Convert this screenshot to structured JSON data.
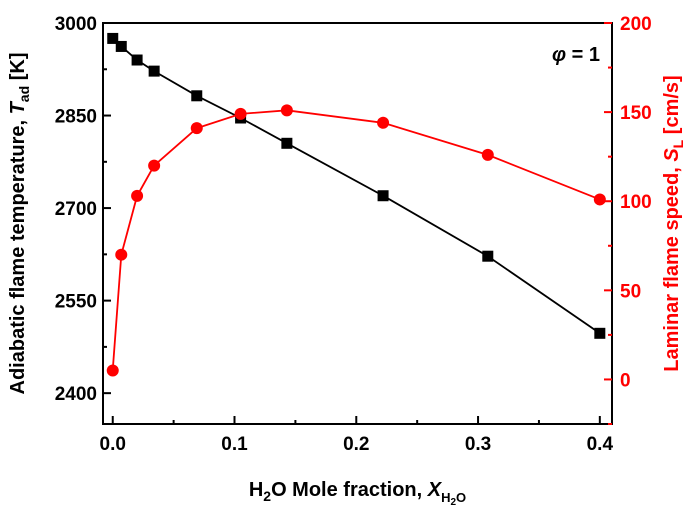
{
  "chart_data": {
    "type": "line",
    "annotation": {
      "symbol": "φ",
      "text": " = 1"
    },
    "x_axis": {
      "label_prefix": "H",
      "label_sub1": "2",
      "label_mid": "O Mole fraction, ",
      "label_italic": "X",
      "label_sub2": "H",
      "label_sub2_sub": "2",
      "label_sub2_end": "O",
      "range": [
        -0.008,
        0.41
      ],
      "ticks": [
        0.0,
        0.1,
        0.2,
        0.3,
        0.4
      ],
      "tick_labels": [
        "0.0",
        "0.1",
        "0.2",
        "0.3",
        "0.4"
      ]
    },
    "y_left": {
      "label_text": "Adiabatic flame temperature, ",
      "label_italic": "T",
      "label_sub": "ad",
      "label_end": " [K]",
      "range": [
        2350,
        3000
      ],
      "ticks": [
        2400,
        2550,
        2700,
        2850,
        3000
      ],
      "tick_labels": [
        "2400",
        "2550",
        "2700",
        "2850",
        "3000"
      ],
      "color": "#000000"
    },
    "y_right": {
      "label_text": "Laminar flame speed, ",
      "label_italic": "S",
      "label_sub": "L",
      "label_end": " [cm/s]",
      "range": [
        -25,
        200
      ],
      "ticks": [
        0,
        50,
        100,
        150,
        200
      ],
      "tick_labels": [
        "0",
        "50",
        "100",
        "150",
        "200"
      ],
      "color": "#ff0000"
    },
    "series": [
      {
        "axis": "left",
        "marker": "square",
        "color": "#000000",
        "x": [
          0.0,
          0.007,
          0.02,
          0.034,
          0.069,
          0.105,
          0.143,
          0.222,
          0.308,
          0.4
        ],
        "values": [
          2975,
          2962,
          2940,
          2922,
          2882,
          2846,
          2805,
          2720,
          2622,
          2497
        ]
      },
      {
        "axis": "right",
        "marker": "circle",
        "color": "#ff0000",
        "x": [
          0.0,
          0.007,
          0.02,
          0.034,
          0.069,
          0.105,
          0.143,
          0.222,
          0.308,
          0.4
        ],
        "values": [
          5,
          70,
          103,
          120,
          141,
          149,
          151,
          144,
          126,
          101
        ]
      }
    ]
  }
}
